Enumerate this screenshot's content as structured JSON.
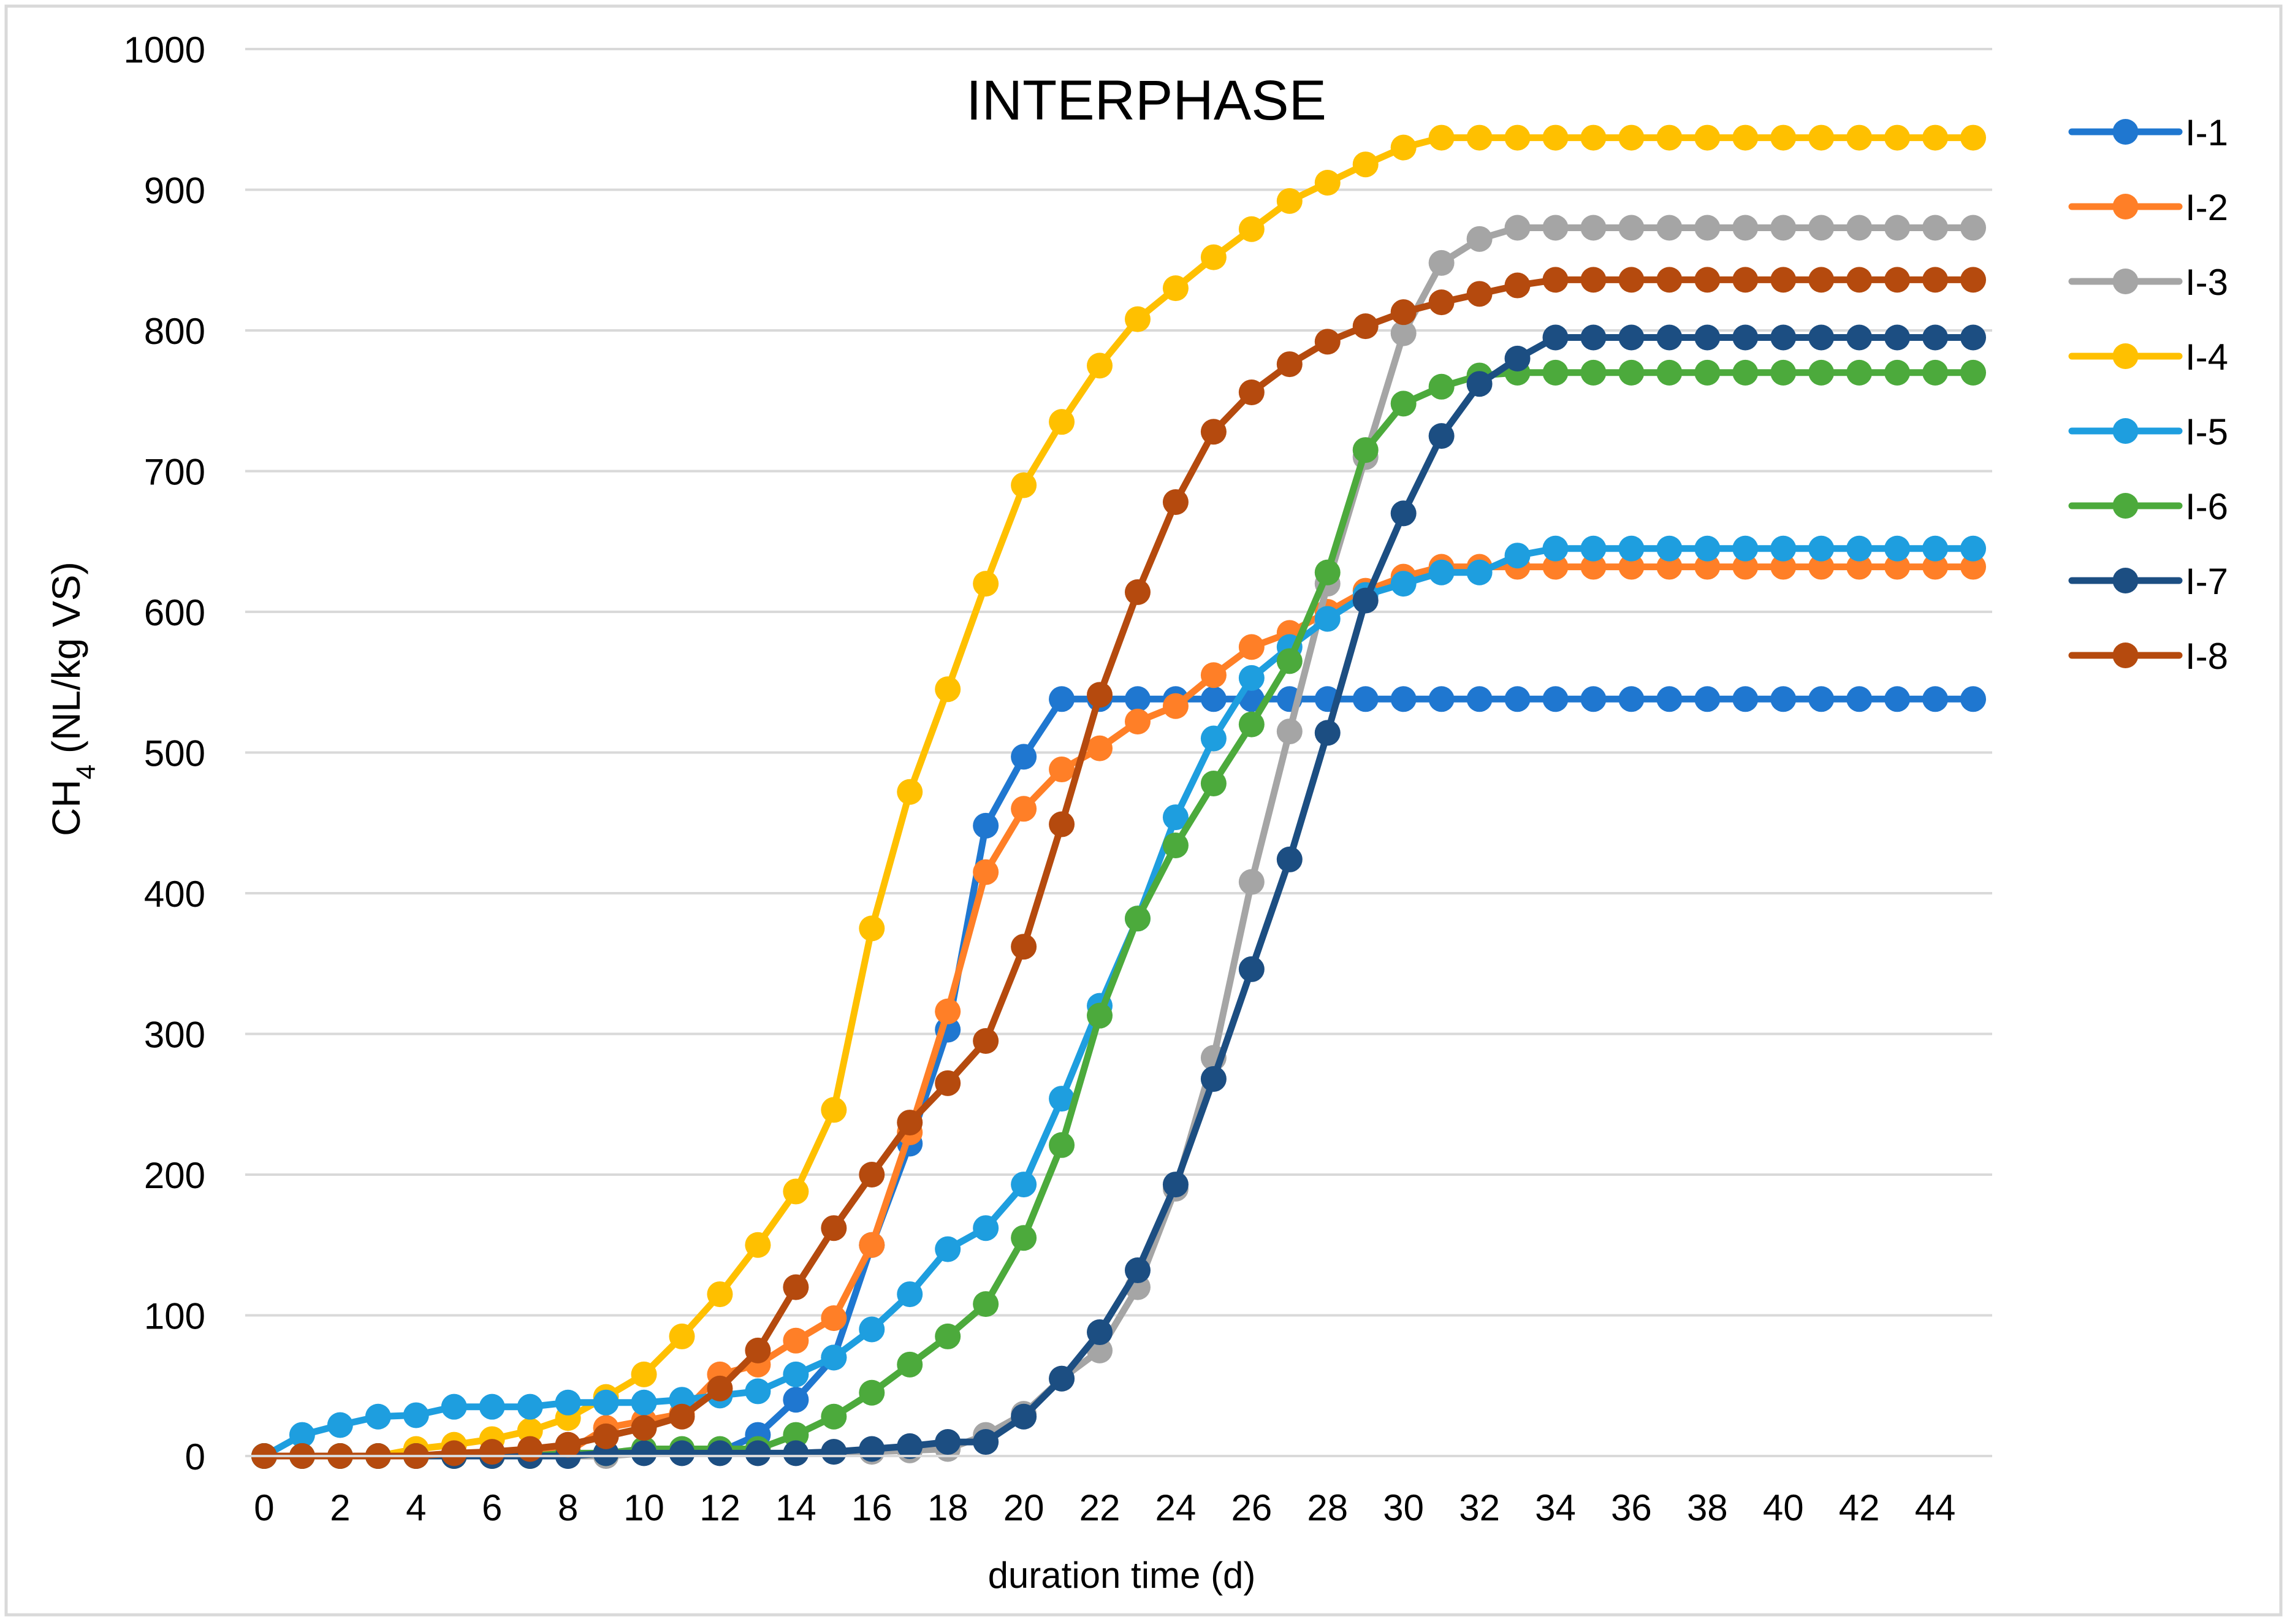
{
  "chart_data": {
    "type": "line",
    "title": "INTERPHASE",
    "xlabel": "duration time (d)",
    "ylabel_main": "CH",
    "ylabel_sub": "4",
    "ylabel_rest": " (NL/kg VS)",
    "xlim": [
      -0.5,
      45.5
    ],
    "ylim": [
      0,
      1000
    ],
    "xticks": [
      0,
      2,
      4,
      6,
      8,
      10,
      12,
      14,
      16,
      18,
      20,
      22,
      24,
      26,
      28,
      30,
      32,
      34,
      36,
      38,
      40,
      42,
      44
    ],
    "yticks": [
      0,
      100,
      200,
      300,
      400,
      500,
      600,
      700,
      800,
      900,
      1000
    ],
    "grid": true,
    "legend_position": "right",
    "x": [
      0,
      1,
      2,
      3,
      4,
      5,
      6,
      7,
      8,
      9,
      10,
      11,
      12,
      13,
      14,
      15,
      16,
      17,
      18,
      19,
      20,
      21,
      22,
      23,
      24,
      25,
      26,
      27,
      28,
      29,
      30,
      31,
      32,
      33,
      34,
      35,
      36,
      37,
      38,
      39,
      40,
      41,
      42,
      43,
      44,
      45
    ],
    "series": [
      {
        "name": "I-1",
        "color": "#1F77D0",
        "values": [
          0,
          0,
          0,
          0,
          0,
          0,
          0,
          0,
          0,
          2,
          3,
          3,
          3,
          15,
          40,
          70,
          150,
          222,
          303,
          448,
          497,
          538,
          538,
          538,
          538,
          538,
          538,
          538,
          538,
          538,
          538,
          538,
          538,
          538,
          538,
          538,
          538,
          538,
          538,
          538,
          538,
          538,
          538,
          538,
          538,
          538
        ]
      },
      {
        "name": "I-2",
        "color": "#FF7F27",
        "values": [
          0,
          0,
          0,
          0,
          0,
          0,
          2,
          2,
          3,
          20,
          25,
          30,
          58,
          65,
          82,
          98,
          150,
          230,
          316,
          415,
          460,
          488,
          503,
          522,
          533,
          555,
          575,
          585,
          600,
          615,
          625,
          632,
          632,
          632,
          632,
          632,
          632,
          632,
          632,
          632,
          632,
          632,
          632,
          632,
          632,
          632
        ]
      },
      {
        "name": "I-3",
        "color": "#A5A5A5",
        "values": [
          0,
          0,
          0,
          0,
          0,
          0,
          0,
          0,
          0,
          0,
          2,
          2,
          2,
          2,
          2,
          3,
          3,
          4,
          5,
          15,
          30,
          55,
          75,
          120,
          190,
          283,
          408,
          515,
          620,
          710,
          798,
          848,
          865,
          873,
          873,
          873,
          873,
          873,
          873,
          873,
          873,
          873,
          873,
          873,
          873,
          873
        ]
      },
      {
        "name": "I-4",
        "color": "#FFC000",
        "values": [
          0,
          0,
          0,
          0,
          5,
          8,
          12,
          18,
          27,
          42,
          58,
          85,
          115,
          150,
          188,
          246,
          375,
          472,
          545,
          620,
          690,
          735,
          775,
          808,
          830,
          852,
          872,
          892,
          905,
          918,
          930,
          937,
          937,
          937,
          937,
          937,
          937,
          937,
          937,
          937,
          937,
          937,
          937,
          937,
          937,
          937
        ]
      },
      {
        "name": "I-5",
        "color": "#1E9EDF",
        "values": [
          0,
          15,
          22,
          28,
          29,
          35,
          35,
          35,
          38,
          38,
          38,
          40,
          43,
          46,
          58,
          70,
          90,
          115,
          147,
          162,
          193,
          254,
          320,
          382,
          454,
          510,
          553,
          575,
          595,
          612,
          620,
          628,
          628,
          640,
          645,
          645,
          645,
          645,
          645,
          645,
          645,
          645,
          645,
          645,
          645,
          645
        ]
      },
      {
        "name": "I-6",
        "color": "#4CAA3C",
        "values": [
          0,
          0,
          0,
          0,
          0,
          0,
          0,
          0,
          2,
          2,
          5,
          5,
          5,
          5,
          15,
          28,
          45,
          65,
          85,
          108,
          155,
          221,
          313,
          382,
          434,
          478,
          520,
          565,
          628,
          715,
          748,
          760,
          768,
          770,
          770,
          770,
          770,
          770,
          770,
          770,
          770,
          770,
          770,
          770,
          770,
          770
        ]
      },
      {
        "name": "I-7",
        "color": "#1C4E82",
        "values": [
          0,
          0,
          0,
          0,
          0,
          0,
          0,
          0,
          0,
          2,
          2,
          2,
          2,
          2,
          2,
          3,
          5,
          7,
          10,
          10,
          28,
          55,
          88,
          132,
          193,
          268,
          346,
          424,
          514,
          608,
          670,
          725,
          762,
          780,
          795,
          795,
          795,
          795,
          795,
          795,
          795,
          795,
          795,
          795,
          795,
          795
        ]
      },
      {
        "name": "I-8",
        "color": "#B54A0E",
        "values": [
          0,
          0,
          0,
          0,
          0,
          2,
          3,
          5,
          8,
          14,
          20,
          28,
          48,
          75,
          120,
          162,
          200,
          237,
          265,
          295,
          362,
          449,
          541,
          614,
          678,
          728,
          756,
          776,
          792,
          803,
          813,
          820,
          826,
          832,
          836,
          836,
          836,
          836,
          836,
          836,
          836,
          836,
          836,
          836,
          836,
          836
        ]
      }
    ]
  }
}
